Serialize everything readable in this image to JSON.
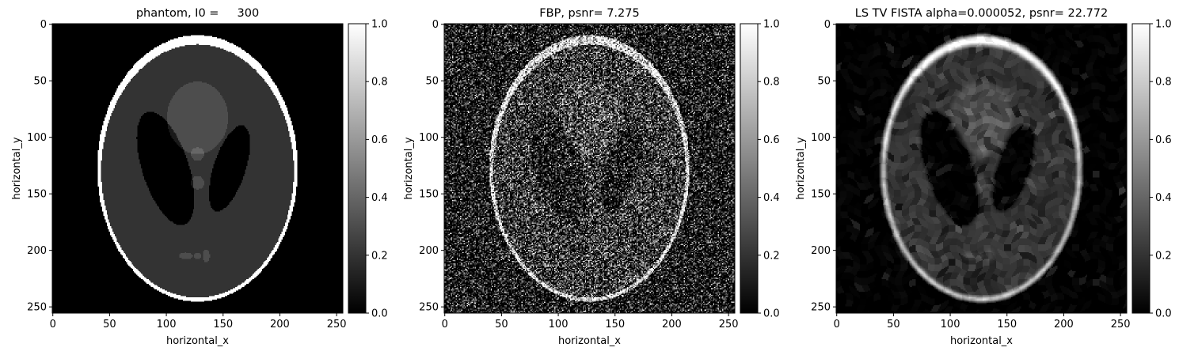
{
  "chart_data": [
    {
      "type": "heatmap",
      "title": "phantom, I0 =     300",
      "xlabel": "horizontal_x",
      "ylabel": "horizontal_y",
      "xticks": [
        0,
        50,
        100,
        150,
        200,
        250
      ],
      "yticks": [
        0,
        50,
        100,
        150,
        200,
        250
      ],
      "xlim": [
        -0.5,
        255.5
      ],
      "ylim": [
        255.5,
        -0.5
      ],
      "colormap": "gray",
      "colorbar": {
        "range": [
          0.0,
          1.0
        ],
        "ticks": [
          "0.0",
          "0.2",
          "0.4",
          "0.6",
          "0.8",
          "1.0"
        ]
      },
      "content": "phantom"
    },
    {
      "type": "heatmap",
      "title": "FBP, psnr= 7.275",
      "xlabel": "horizontal_x",
      "ylabel": "horizontal_y",
      "xticks": [
        0,
        50,
        100,
        150,
        200,
        250
      ],
      "yticks": [
        0,
        50,
        100,
        150,
        200,
        250
      ],
      "xlim": [
        -0.5,
        255.5
      ],
      "ylim": [
        255.5,
        -0.5
      ],
      "colormap": "gray",
      "colorbar": {
        "range": [
          0.0,
          1.0
        ],
        "ticks": [
          "0.0",
          "0.2",
          "0.4",
          "0.6",
          "0.8",
          "1.0"
        ]
      },
      "content": "fbp"
    },
    {
      "type": "heatmap",
      "title": "LS TV FISTA alpha=0.000052, psnr= 22.772",
      "xlabel": "horizontal_x",
      "ylabel": "horizontal_y",
      "xticks": [
        0,
        50,
        100,
        150,
        200,
        250
      ],
      "yticks": [
        0,
        50,
        100,
        150,
        200,
        250
      ],
      "xlim": [
        -0.5,
        255.5
      ],
      "ylim": [
        255.5,
        -0.5
      ],
      "colormap": "gray",
      "colorbar": {
        "range": [
          0.0,
          1.0
        ],
        "ticks": [
          "0.0",
          "0.2",
          "0.4",
          "0.6",
          "0.8",
          "1.0"
        ]
      },
      "content": "tv"
    }
  ]
}
